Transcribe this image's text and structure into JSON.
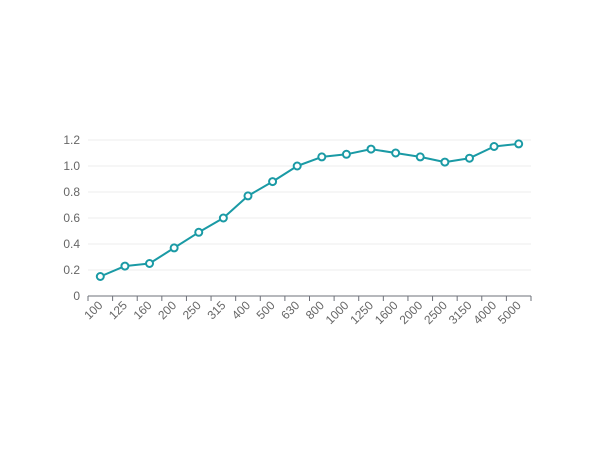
{
  "chart_data": {
    "type": "line",
    "title": "",
    "xlabel": "",
    "ylabel": "",
    "categories": [
      "100",
      "125",
      "160",
      "200",
      "250",
      "315",
      "400",
      "500",
      "630",
      "800",
      "1000",
      "1250",
      "1600",
      "2000",
      "2500",
      "3150",
      "4000",
      "5000"
    ],
    "series": [
      {
        "values": [
          0.15,
          0.23,
          0.25,
          0.37,
          0.49,
          0.6,
          0.77,
          0.88,
          1.0,
          1.07,
          1.09,
          1.13,
          1.1,
          1.07,
          1.03,
          1.06,
          1.15,
          1.17
        ]
      }
    ],
    "ylim": [
      0,
      1.2
    ],
    "yticks": [
      "0",
      "0.2",
      "0.4",
      "0.6",
      "0.8",
      "1.0",
      "1.2"
    ],
    "grid": true,
    "colors": {
      "series": "#1a9aa5",
      "grid": "#eeeeee",
      "axis": "#6e7079",
      "text": "#666666"
    }
  }
}
